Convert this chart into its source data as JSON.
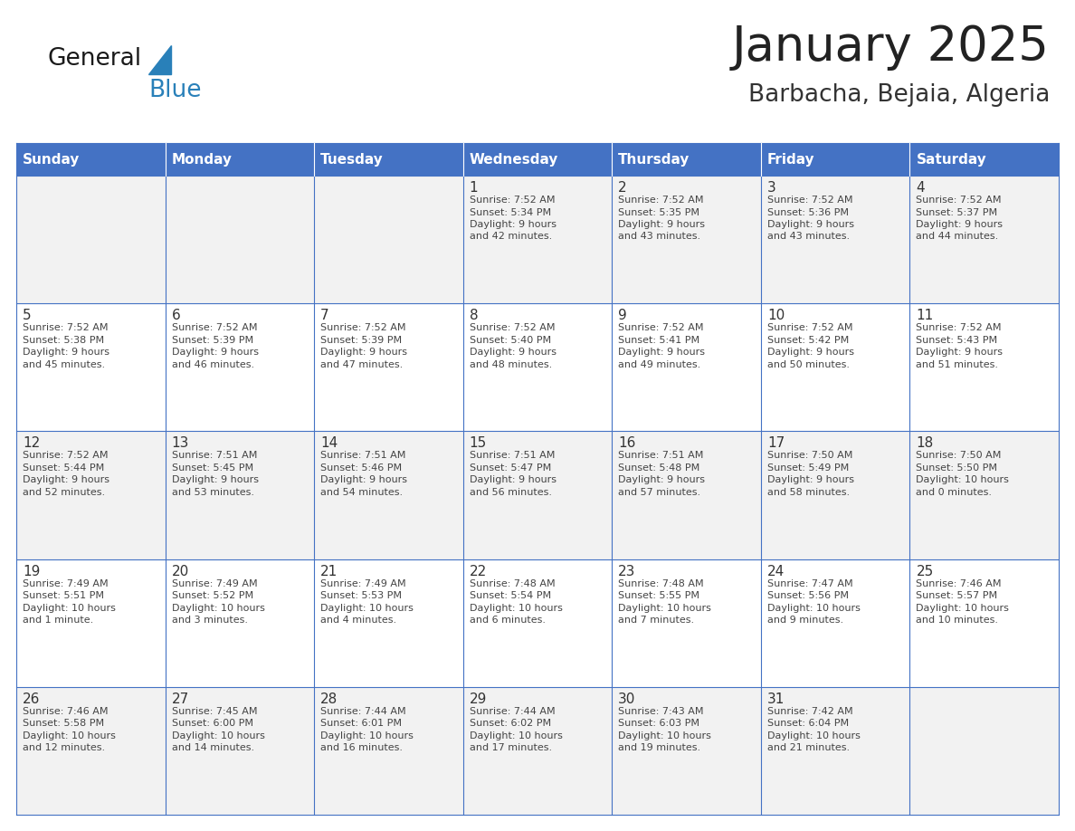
{
  "title": "January 2025",
  "subtitle": "Barbacha, Bejaia, Algeria",
  "header_bg": "#4472C4",
  "header_text": "#FFFFFF",
  "cell_bg_odd": "#F2F2F2",
  "cell_bg_even": "#FFFFFF",
  "border_color": "#4472C4",
  "day_names": [
    "Sunday",
    "Monday",
    "Tuesday",
    "Wednesday",
    "Thursday",
    "Friday",
    "Saturday"
  ],
  "title_color": "#222222",
  "subtitle_color": "#333333",
  "number_color": "#333333",
  "text_color": "#444444",
  "logo_general_color": "#1a1a1a",
  "logo_blue_color": "#2980B9",
  "title_fontsize": 38,
  "subtitle_fontsize": 19,
  "header_fontsize": 11,
  "date_fontsize": 11,
  "cell_fontsize": 8,
  "weeks": [
    [
      {
        "date": "",
        "sunrise": "",
        "sunset": "",
        "daylight_line1": "",
        "daylight_line2": ""
      },
      {
        "date": "",
        "sunrise": "",
        "sunset": "",
        "daylight_line1": "",
        "daylight_line2": ""
      },
      {
        "date": "",
        "sunrise": "",
        "sunset": "",
        "daylight_line1": "",
        "daylight_line2": ""
      },
      {
        "date": "1",
        "sunrise": "Sunrise: 7:52 AM",
        "sunset": "Sunset: 5:34 PM",
        "daylight_line1": "Daylight: 9 hours",
        "daylight_line2": "and 42 minutes."
      },
      {
        "date": "2",
        "sunrise": "Sunrise: 7:52 AM",
        "sunset": "Sunset: 5:35 PM",
        "daylight_line1": "Daylight: 9 hours",
        "daylight_line2": "and 43 minutes."
      },
      {
        "date": "3",
        "sunrise": "Sunrise: 7:52 AM",
        "sunset": "Sunset: 5:36 PM",
        "daylight_line1": "Daylight: 9 hours",
        "daylight_line2": "and 43 minutes."
      },
      {
        "date": "4",
        "sunrise": "Sunrise: 7:52 AM",
        "sunset": "Sunset: 5:37 PM",
        "daylight_line1": "Daylight: 9 hours",
        "daylight_line2": "and 44 minutes."
      }
    ],
    [
      {
        "date": "5",
        "sunrise": "Sunrise: 7:52 AM",
        "sunset": "Sunset: 5:38 PM",
        "daylight_line1": "Daylight: 9 hours",
        "daylight_line2": "and 45 minutes."
      },
      {
        "date": "6",
        "sunrise": "Sunrise: 7:52 AM",
        "sunset": "Sunset: 5:39 PM",
        "daylight_line1": "Daylight: 9 hours",
        "daylight_line2": "and 46 minutes."
      },
      {
        "date": "7",
        "sunrise": "Sunrise: 7:52 AM",
        "sunset": "Sunset: 5:39 PM",
        "daylight_line1": "Daylight: 9 hours",
        "daylight_line2": "and 47 minutes."
      },
      {
        "date": "8",
        "sunrise": "Sunrise: 7:52 AM",
        "sunset": "Sunset: 5:40 PM",
        "daylight_line1": "Daylight: 9 hours",
        "daylight_line2": "and 48 minutes."
      },
      {
        "date": "9",
        "sunrise": "Sunrise: 7:52 AM",
        "sunset": "Sunset: 5:41 PM",
        "daylight_line1": "Daylight: 9 hours",
        "daylight_line2": "and 49 minutes."
      },
      {
        "date": "10",
        "sunrise": "Sunrise: 7:52 AM",
        "sunset": "Sunset: 5:42 PM",
        "daylight_line1": "Daylight: 9 hours",
        "daylight_line2": "and 50 minutes."
      },
      {
        "date": "11",
        "sunrise": "Sunrise: 7:52 AM",
        "sunset": "Sunset: 5:43 PM",
        "daylight_line1": "Daylight: 9 hours",
        "daylight_line2": "and 51 minutes."
      }
    ],
    [
      {
        "date": "12",
        "sunrise": "Sunrise: 7:52 AM",
        "sunset": "Sunset: 5:44 PM",
        "daylight_line1": "Daylight: 9 hours",
        "daylight_line2": "and 52 minutes."
      },
      {
        "date": "13",
        "sunrise": "Sunrise: 7:51 AM",
        "sunset": "Sunset: 5:45 PM",
        "daylight_line1": "Daylight: 9 hours",
        "daylight_line2": "and 53 minutes."
      },
      {
        "date": "14",
        "sunrise": "Sunrise: 7:51 AM",
        "sunset": "Sunset: 5:46 PM",
        "daylight_line1": "Daylight: 9 hours",
        "daylight_line2": "and 54 minutes."
      },
      {
        "date": "15",
        "sunrise": "Sunrise: 7:51 AM",
        "sunset": "Sunset: 5:47 PM",
        "daylight_line1": "Daylight: 9 hours",
        "daylight_line2": "and 56 minutes."
      },
      {
        "date": "16",
        "sunrise": "Sunrise: 7:51 AM",
        "sunset": "Sunset: 5:48 PM",
        "daylight_line1": "Daylight: 9 hours",
        "daylight_line2": "and 57 minutes."
      },
      {
        "date": "17",
        "sunrise": "Sunrise: 7:50 AM",
        "sunset": "Sunset: 5:49 PM",
        "daylight_line1": "Daylight: 9 hours",
        "daylight_line2": "and 58 minutes."
      },
      {
        "date": "18",
        "sunrise": "Sunrise: 7:50 AM",
        "sunset": "Sunset: 5:50 PM",
        "daylight_line1": "Daylight: 10 hours",
        "daylight_line2": "and 0 minutes."
      }
    ],
    [
      {
        "date": "19",
        "sunrise": "Sunrise: 7:49 AM",
        "sunset": "Sunset: 5:51 PM",
        "daylight_line1": "Daylight: 10 hours",
        "daylight_line2": "and 1 minute."
      },
      {
        "date": "20",
        "sunrise": "Sunrise: 7:49 AM",
        "sunset": "Sunset: 5:52 PM",
        "daylight_line1": "Daylight: 10 hours",
        "daylight_line2": "and 3 minutes."
      },
      {
        "date": "21",
        "sunrise": "Sunrise: 7:49 AM",
        "sunset": "Sunset: 5:53 PM",
        "daylight_line1": "Daylight: 10 hours",
        "daylight_line2": "and 4 minutes."
      },
      {
        "date": "22",
        "sunrise": "Sunrise: 7:48 AM",
        "sunset": "Sunset: 5:54 PM",
        "daylight_line1": "Daylight: 10 hours",
        "daylight_line2": "and 6 minutes."
      },
      {
        "date": "23",
        "sunrise": "Sunrise: 7:48 AM",
        "sunset": "Sunset: 5:55 PM",
        "daylight_line1": "Daylight: 10 hours",
        "daylight_line2": "and 7 minutes."
      },
      {
        "date": "24",
        "sunrise": "Sunrise: 7:47 AM",
        "sunset": "Sunset: 5:56 PM",
        "daylight_line1": "Daylight: 10 hours",
        "daylight_line2": "and 9 minutes."
      },
      {
        "date": "25",
        "sunrise": "Sunrise: 7:46 AM",
        "sunset": "Sunset: 5:57 PM",
        "daylight_line1": "Daylight: 10 hours",
        "daylight_line2": "and 10 minutes."
      }
    ],
    [
      {
        "date": "26",
        "sunrise": "Sunrise: 7:46 AM",
        "sunset": "Sunset: 5:58 PM",
        "daylight_line1": "Daylight: 10 hours",
        "daylight_line2": "and 12 minutes."
      },
      {
        "date": "27",
        "sunrise": "Sunrise: 7:45 AM",
        "sunset": "Sunset: 6:00 PM",
        "daylight_line1": "Daylight: 10 hours",
        "daylight_line2": "and 14 minutes."
      },
      {
        "date": "28",
        "sunrise": "Sunrise: 7:44 AM",
        "sunset": "Sunset: 6:01 PM",
        "daylight_line1": "Daylight: 10 hours",
        "daylight_line2": "and 16 minutes."
      },
      {
        "date": "29",
        "sunrise": "Sunrise: 7:44 AM",
        "sunset": "Sunset: 6:02 PM",
        "daylight_line1": "Daylight: 10 hours",
        "daylight_line2": "and 17 minutes."
      },
      {
        "date": "30",
        "sunrise": "Sunrise: 7:43 AM",
        "sunset": "Sunset: 6:03 PM",
        "daylight_line1": "Daylight: 10 hours",
        "daylight_line2": "and 19 minutes."
      },
      {
        "date": "31",
        "sunrise": "Sunrise: 7:42 AM",
        "sunset": "Sunset: 6:04 PM",
        "daylight_line1": "Daylight: 10 hours",
        "daylight_line2": "and 21 minutes."
      },
      {
        "date": "",
        "sunrise": "",
        "sunset": "",
        "daylight_line1": "",
        "daylight_line2": ""
      }
    ]
  ]
}
